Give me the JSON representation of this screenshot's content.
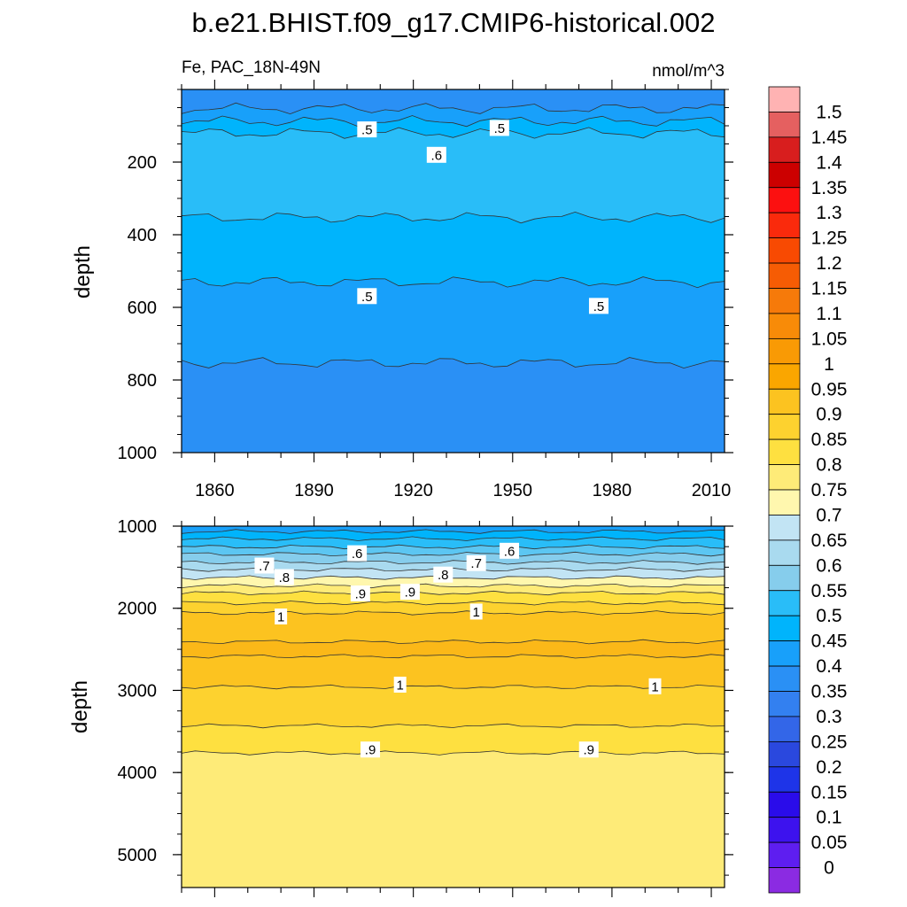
{
  "title": "b.e21.BHIST.f09_g17.CMIP6-historical.002",
  "colors": {
    "palette": [
      "#8B2BE2",
      "#5E1EF0",
      "#3D12EE",
      "#2A0CEA",
      "#0A0AF5",
      "#1E34E8",
      "#2A48DE",
      "#3366E8",
      "#3380F0",
      "#2A90F5",
      "#18A0FA",
      "#00B4FC",
      "#29BDF8",
      "#5CC6F2",
      "#86CDEC",
      "#A9DAEF",
      "#C2E4F4",
      "#FFF7AE",
      "#FEEB78",
      "#FEE040",
      "#FDD22F",
      "#FCC320",
      "#FBB818",
      "#FAA600",
      "#F99A05",
      "#F88B08",
      "#F67A0A",
      "#F65C04",
      "#F84A02",
      "#FA2A0C",
      "#FC1010",
      "#E20A0A",
      "#CC0000",
      "#D81E1E",
      "#E56060",
      "#FFB3B3"
    ],
    "contour_line": "#333333"
  },
  "chart_data": [
    {
      "type": "heatmap",
      "panel": "upper",
      "variable_label": "Fe, PAC_18N-49N",
      "units_label": "nmol/m^3",
      "ylabel": "depth",
      "y_reversed": true,
      "xlim": [
        1850,
        2014
      ],
      "ylim": [
        0,
        1000
      ],
      "x_ticks": [
        "1860",
        "1890",
        "1920",
        "1950",
        "1980",
        "2010"
      ],
      "y_ticks": [
        "200",
        "400",
        "600",
        "800",
        "1000"
      ],
      "contour_labels": [
        {
          "text": ".5",
          "x": 1906,
          "y": 110
        },
        {
          "text": ".5",
          "x": 1946,
          "y": 106
        },
        {
          "text": ".6",
          "x": 1927,
          "y": 180
        },
        {
          "text": ".5",
          "x": 1906,
          "y": 569
        },
        {
          "text": ".5",
          "x": 1976,
          "y": 596
        }
      ],
      "depth_profile": [
        {
          "depth": 15,
          "value": 0.4
        },
        {
          "depth": 60,
          "value": 0.46
        },
        {
          "depth": 120,
          "value": 0.55
        },
        {
          "depth": 250,
          "value": 0.58
        },
        {
          "depth": 420,
          "value": 0.53
        },
        {
          "depth": 600,
          "value": 0.48
        },
        {
          "depth": 850,
          "value": 0.43
        },
        {
          "depth": 1000,
          "value": 0.42
        }
      ]
    },
    {
      "type": "heatmap",
      "panel": "lower",
      "ylabel": "depth",
      "y_reversed": true,
      "xlim": [
        1850,
        2014
      ],
      "ylim": [
        1000,
        5400
      ],
      "y_ticks": [
        "1000",
        "2000",
        "3000",
        "4000",
        "5000"
      ],
      "contour_labels": [
        {
          "text": ".6",
          "x": 1903,
          "y": 1330
        },
        {
          "text": ".6",
          "x": 1949,
          "y": 1300
        },
        {
          "text": ".7",
          "x": 1875,
          "y": 1480
        },
        {
          "text": ".7",
          "x": 1939,
          "y": 1450
        },
        {
          "text": ".8",
          "x": 1881,
          "y": 1620
        },
        {
          "text": ".8",
          "x": 1929,
          "y": 1590
        },
        {
          "text": ".9",
          "x": 1904,
          "y": 1820
        },
        {
          "text": ".9",
          "x": 1919,
          "y": 1800
        },
        {
          "text": "1",
          "x": 1880,
          "y": 2100
        },
        {
          "text": "1",
          "x": 1939,
          "y": 2040
        },
        {
          "text": "1",
          "x": 1916,
          "y": 2930
        },
        {
          "text": "1",
          "x": 1993,
          "y": 2950
        },
        {
          "text": ".9",
          "x": 1907,
          "y": 3720
        },
        {
          "text": ".9",
          "x": 1973,
          "y": 3720
        }
      ],
      "depth_profile": [
        {
          "depth": 1000,
          "value": 0.47
        },
        {
          "depth": 1150,
          "value": 0.55
        },
        {
          "depth": 1300,
          "value": 0.63
        },
        {
          "depth": 1450,
          "value": 0.71
        },
        {
          "depth": 1600,
          "value": 0.79
        },
        {
          "depth": 1850,
          "value": 0.92
        },
        {
          "depth": 2100,
          "value": 1.02
        },
        {
          "depth": 2500,
          "value": 1.06
        },
        {
          "depth": 2950,
          "value": 1.0
        },
        {
          "depth": 3300,
          "value": 0.97
        },
        {
          "depth": 3750,
          "value": 0.9
        },
        {
          "depth": 5400,
          "value": 0.87
        }
      ]
    }
  ],
  "colorbar": {
    "levels": [
      "1.5",
      "1.45",
      "1.4",
      "1.35",
      "1.3",
      "1.25",
      "1.2",
      "1.15",
      "1.1",
      "1.05",
      "1",
      "0.95",
      "0.9",
      "0.85",
      "0.8",
      "0.75",
      "0.7",
      "0.65",
      "0.6",
      "0.55",
      "0.5",
      "0.45",
      "0.4",
      "0.35",
      "0.3",
      "0.25",
      "0.2",
      "0.15",
      "0.1",
      "0.05",
      "0"
    ]
  }
}
